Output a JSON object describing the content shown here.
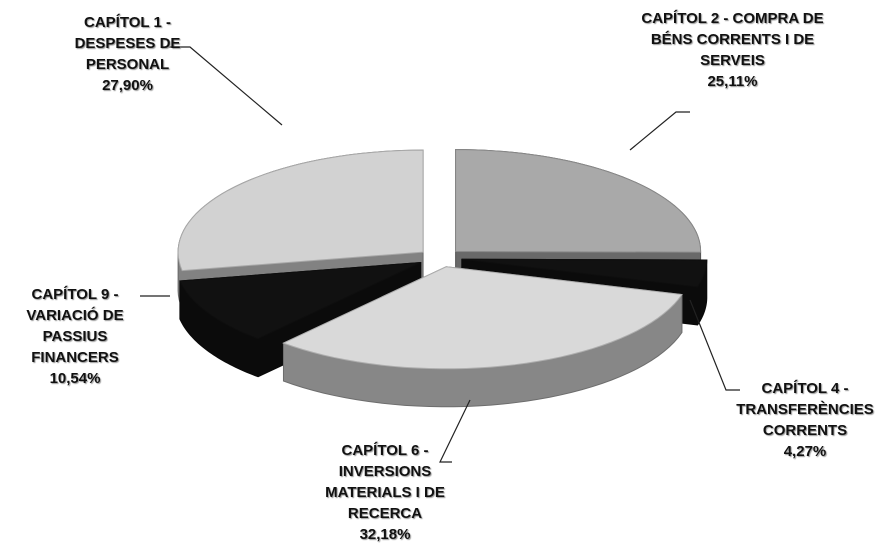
{
  "chart_data": {
    "type": "pie",
    "categories": [
      "CAPÍTOL 1 - DESPESES DE PERSONAL",
      "CAPÍTOL 2 - COMPRA DE BÉNS CORRENTS I DE SERVEIS",
      "CAPÍTOL 4 - TRANSFERÈNCIES CORRENTS",
      "CAPÍTOL 6 - INVERSIONS MATERIALS I DE RECERCA",
      "CAPÍTOL 9 - VARIACIÓ DE PASSIUS FINANCERS"
    ],
    "values": [
      27.9,
      25.11,
      4.27,
      32.18,
      10.54
    ],
    "value_labels": [
      "27,90%",
      "25,11%",
      "4,27%",
      "32,18%",
      "10,54%"
    ],
    "colors": [
      "#d2d2d2",
      "#a9a9a9",
      "#111111",
      "#d9d9d9",
      "#111111"
    ]
  }
}
